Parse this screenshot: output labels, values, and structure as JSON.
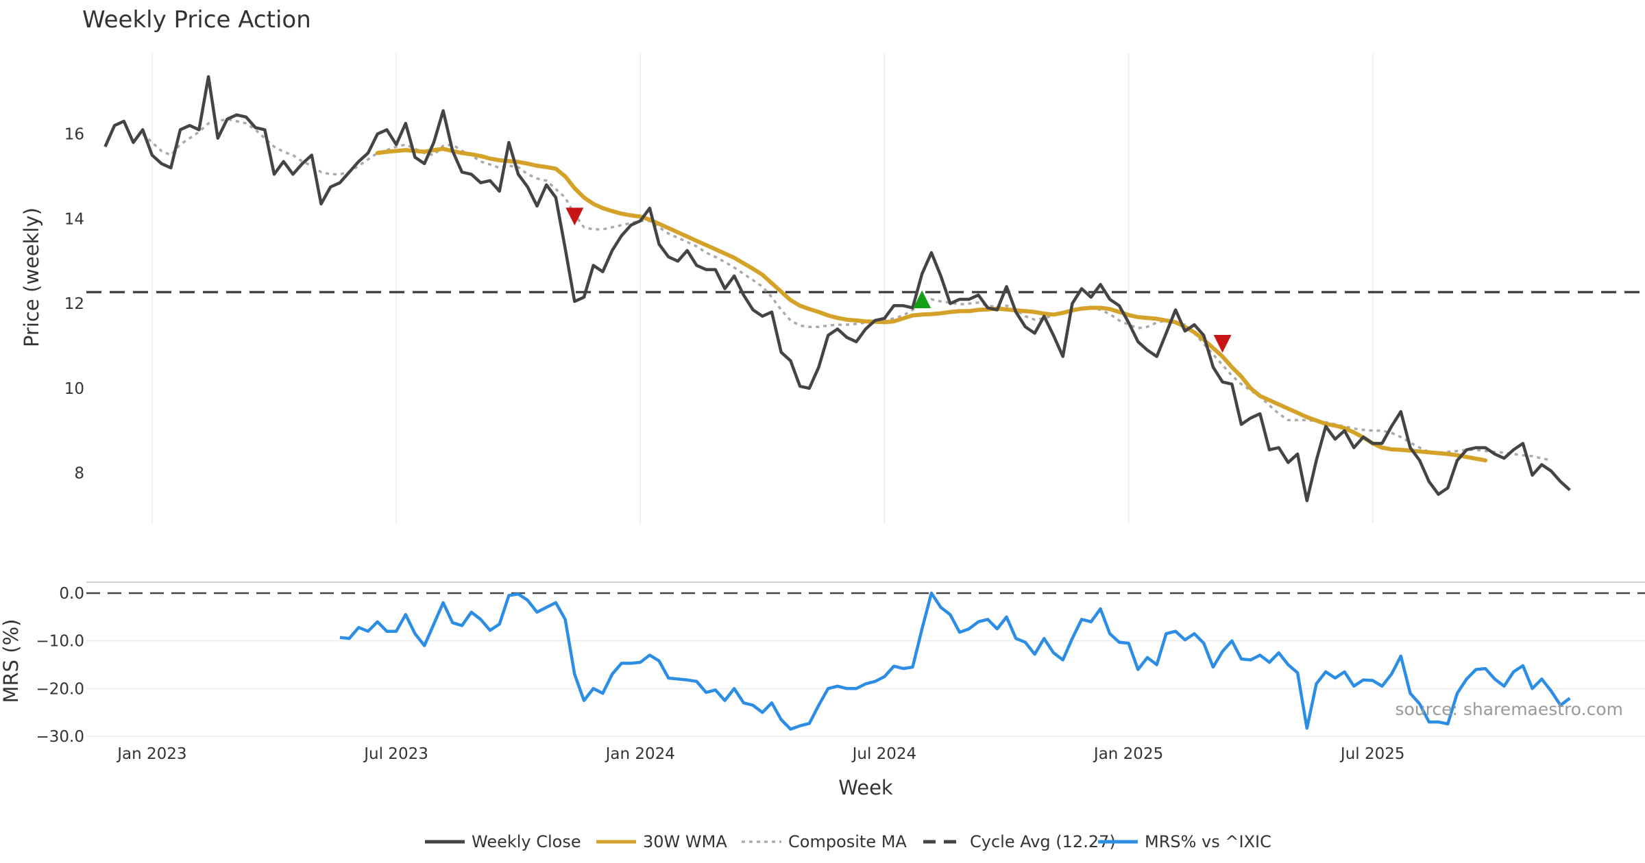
{
  "chart_data": {
    "type": "line",
    "title": "Weekly Price Action",
    "source": "source: sharemaestro.com",
    "x_axis": {
      "label": "Week",
      "tick_labels": [
        "Jan 2023",
        "Jul 2023",
        "Jan 2024",
        "Jul 2024",
        "Jan 2025",
        "Jul 2025"
      ],
      "tick_weeks": [
        5,
        31,
        57,
        83,
        109,
        135
      ],
      "range_weeks": [
        -2,
        164
      ]
    },
    "price_panel": {
      "ylabel": "Price (weekly)",
      "ylim": [
        6.8,
        17.9
      ],
      "yticks": [
        8,
        10,
        12,
        14,
        16
      ],
      "weekly_close": [
        15.7,
        16.2,
        16.3,
        15.8,
        16.1,
        15.5,
        15.3,
        15.2,
        16.1,
        16.2,
        16.1,
        17.35,
        15.9,
        16.35,
        16.45,
        16.4,
        16.15,
        16.1,
        15.05,
        15.35,
        15.05,
        15.3,
        15.5,
        14.35,
        14.75,
        14.85,
        15.1,
        15.35,
        15.55,
        16.0,
        16.1,
        15.75,
        16.25,
        15.45,
        15.3,
        15.8,
        16.55,
        15.6,
        15.1,
        15.05,
        14.85,
        14.9,
        14.65,
        15.8,
        15.05,
        14.75,
        14.3,
        14.8,
        14.5,
        13.3,
        12.05,
        12.15,
        12.9,
        12.75,
        13.25,
        13.6,
        13.85,
        13.95,
        14.25,
        13.4,
        13.1,
        13.0,
        13.25,
        12.9,
        12.8,
        12.8,
        12.35,
        12.65,
        12.2,
        11.85,
        11.7,
        11.8,
        10.85,
        10.65,
        10.05,
        10.0,
        10.5,
        11.25,
        11.4,
        11.2,
        11.1,
        11.4,
        11.6,
        11.65,
        11.95,
        11.95,
        11.9,
        12.7,
        13.2,
        12.65,
        12.0,
        12.1,
        12.1,
        12.2,
        11.9,
        11.85,
        12.4,
        11.8,
        11.45,
        11.3,
        11.7,
        11.25,
        10.75,
        12.0,
        12.35,
        12.15,
        12.45,
        12.1,
        11.95,
        11.55,
        11.1,
        10.9,
        10.75,
        11.3,
        11.85,
        11.35,
        11.5,
        11.25,
        10.5,
        10.15,
        10.1,
        9.15,
        9.3,
        9.4,
        8.55,
        8.6,
        8.25,
        8.45,
        7.35,
        8.3,
        9.1,
        8.8,
        9.0,
        8.6,
        8.85,
        8.7,
        8.7,
        9.1,
        9.45,
        8.6,
        8.3,
        7.8,
        7.5,
        7.65,
        8.3,
        8.55,
        8.6,
        8.6,
        8.45,
        8.35,
        8.55,
        8.7,
        7.95,
        8.2,
        8.05,
        7.8,
        7.6
      ],
      "wma_30w": [
        null,
        null,
        null,
        null,
        null,
        null,
        null,
        null,
        null,
        null,
        null,
        null,
        null,
        null,
        null,
        null,
        null,
        null,
        null,
        null,
        null,
        null,
        null,
        null,
        null,
        null,
        null,
        null,
        null,
        15.55,
        15.58,
        15.6,
        15.62,
        15.6,
        15.58,
        15.62,
        15.65,
        15.6,
        15.55,
        15.52,
        15.48,
        15.42,
        15.38,
        15.36,
        15.34,
        15.3,
        15.25,
        15.22,
        15.18,
        15.0,
        14.72,
        14.5,
        14.35,
        14.25,
        14.18,
        14.12,
        14.08,
        14.05,
        13.98,
        13.88,
        13.78,
        13.68,
        13.58,
        13.48,
        13.38,
        13.28,
        13.18,
        13.08,
        12.95,
        12.82,
        12.68,
        12.48,
        12.28,
        12.08,
        11.95,
        11.87,
        11.8,
        11.72,
        11.66,
        11.62,
        11.6,
        11.58,
        11.57,
        11.56,
        11.58,
        11.65,
        11.72,
        11.74,
        11.75,
        11.77,
        11.8,
        11.82,
        11.82,
        11.85,
        11.86,
        11.88,
        11.86,
        11.84,
        11.82,
        11.8,
        11.76,
        11.74,
        11.78,
        11.84,
        11.88,
        11.9,
        11.9,
        11.87,
        11.8,
        11.73,
        11.68,
        11.66,
        11.64,
        11.6,
        11.56,
        11.45,
        11.32,
        11.15,
        10.95,
        10.75,
        10.5,
        10.28,
        10.0,
        9.82,
        9.72,
        9.62,
        9.52,
        9.42,
        9.32,
        9.24,
        9.16,
        9.12,
        9.06,
        8.96,
        8.84,
        8.7,
        8.6,
        8.56,
        8.55,
        8.53,
        8.51,
        8.49,
        8.47,
        8.45,
        8.42,
        8.38,
        8.34,
        8.3
      ],
      "composite_ma": [
        null,
        null,
        null,
        null,
        16.0,
        15.8,
        15.6,
        15.5,
        15.75,
        15.9,
        16.05,
        16.25,
        16.3,
        16.35,
        16.3,
        16.25,
        16.1,
        15.9,
        15.7,
        15.58,
        15.5,
        15.35,
        15.25,
        15.1,
        15.05,
        15.05,
        15.1,
        15.25,
        15.4,
        15.55,
        15.62,
        15.7,
        15.75,
        15.65,
        15.55,
        15.5,
        15.72,
        15.75,
        15.6,
        15.5,
        15.35,
        15.28,
        15.2,
        15.25,
        15.22,
        15.05,
        14.95,
        14.9,
        14.7,
        14.5,
        14.1,
        13.8,
        13.75,
        13.75,
        13.8,
        13.85,
        13.9,
        13.95,
        13.95,
        13.8,
        13.65,
        13.55,
        13.45,
        13.35,
        13.2,
        13.1,
        12.98,
        12.85,
        12.7,
        12.55,
        12.4,
        12.15,
        11.85,
        11.6,
        11.48,
        11.45,
        11.45,
        11.48,
        11.5,
        11.5,
        11.52,
        11.55,
        11.55,
        11.6,
        11.65,
        11.72,
        11.85,
        12.0,
        12.1,
        12.05,
        12.02,
        11.98,
        12.0,
        12.02,
        11.95,
        11.92,
        11.95,
        11.85,
        11.7,
        11.62,
        11.65,
        11.72,
        11.8,
        11.85,
        11.9,
        11.92,
        11.85,
        11.75,
        11.6,
        11.5,
        11.42,
        11.45,
        11.55,
        11.6,
        11.55,
        11.5,
        11.3,
        11.05,
        10.8,
        10.55,
        10.3,
        10.1,
        9.95,
        9.8,
        9.6,
        9.4,
        9.25,
        9.25,
        9.25,
        9.23,
        9.2,
        9.15,
        9.1,
        9.05,
        9.02,
        9.0,
        9.0,
        8.95,
        8.85,
        8.72,
        8.6,
        8.5,
        8.48,
        8.5,
        8.52,
        8.55,
        8.55,
        8.52,
        8.5,
        8.48,
        8.45,
        8.42,
        8.4,
        8.35,
        8.3
      ],
      "cycle_avg": 12.27,
      "markers": [
        {
          "type": "sell",
          "week": 50,
          "price": 14.05
        },
        {
          "type": "buy",
          "week": 87,
          "price": 12.1
        },
        {
          "type": "sell",
          "week": 119,
          "price": 11.05
        }
      ]
    },
    "mrs_panel": {
      "ylabel": "MRS (%)",
      "ylim": [
        -31,
        2
      ],
      "yticks": [
        0,
        -10,
        -20,
        -30
      ],
      "yticklabels": [
        "0.0",
        "−10.0",
        "−20.0",
        "−30.0"
      ],
      "mrs_vs_ixic": [
        null,
        null,
        null,
        null,
        null,
        null,
        null,
        null,
        null,
        null,
        null,
        null,
        null,
        null,
        null,
        null,
        null,
        null,
        null,
        null,
        null,
        null,
        null,
        null,
        null,
        -9.3,
        -9.5,
        -7.2,
        -8.0,
        -6.0,
        -8.0,
        -8.0,
        -4.5,
        -8.5,
        -11.0,
        -6.5,
        -2.0,
        -6.2,
        -6.8,
        -4.0,
        -5.5,
        -7.8,
        -6.5,
        -0.5,
        -0.2,
        -1.5,
        -4.0,
        -3.0,
        -2.0,
        -5.5,
        -17.0,
        -22.5,
        -20.0,
        -21.0,
        -17.0,
        -14.7,
        -14.7,
        -14.5,
        -13.0,
        -14.2,
        -17.8,
        -18.0,
        -18.2,
        -18.5,
        -20.8,
        -20.3,
        -22.5,
        -20.0,
        -23.0,
        -23.5,
        -25.0,
        -23.0,
        -26.5,
        -28.5,
        -27.8,
        -27.3,
        -23.5,
        -20.0,
        -19.5,
        -20.0,
        -20.0,
        -19.0,
        -18.5,
        -17.5,
        -15.3,
        -15.8,
        -15.5,
        -7.5,
        0.0,
        -3.0,
        -4.5,
        -8.2,
        -7.5,
        -6.0,
        -5.5,
        -7.5,
        -5.0,
        -9.5,
        -10.3,
        -12.8,
        -9.5,
        -12.5,
        -14.0,
        -9.5,
        -5.5,
        -6.0,
        -3.3,
        -8.5,
        -10.3,
        -10.5,
        -16.0,
        -13.5,
        -15.0,
        -8.5,
        -8.0,
        -9.8,
        -8.5,
        -10.5,
        -15.5,
        -12.2,
        -10.0,
        -13.8,
        -14.0,
        -13.0,
        -14.5,
        -12.5,
        -15.0,
        -16.7,
        -28.3,
        -19.0,
        -16.5,
        -17.8,
        -16.5,
        -19.5,
        -18.2,
        -18.3,
        -19.5,
        -17.0,
        -13.2,
        -21.0,
        -23.2,
        -27.0,
        -27.0,
        -27.4,
        -21.0,
        -18.0,
        -16.0,
        -15.8,
        -18.0,
        -19.5,
        -16.5,
        -15.2,
        -20.0,
        -18.0,
        -20.5,
        -23.5,
        -22.0
      ],
      "zero_line": 0.0
    },
    "legend": [
      {
        "label": "Weekly Close",
        "color": "#444444",
        "style": "solid"
      },
      {
        "label": "30W WMA",
        "color": "#d4a228",
        "style": "solid"
      },
      {
        "label": "Composite MA",
        "color": "#aaaaaa",
        "style": "dotted"
      },
      {
        "label": "Cycle Avg (12.27)",
        "color": "#444444",
        "style": "dashed"
      },
      {
        "label": "MRS% vs ^IXIC",
        "color": "#2b8de3",
        "style": "solid"
      }
    ],
    "colors": {
      "close": "#444444",
      "wma": "#d4a228",
      "composite": "#aaaaaa",
      "cycle": "#444444",
      "mrs": "#2b8de3",
      "sell_marker": "#c81414",
      "buy_marker": "#14a014"
    }
  }
}
